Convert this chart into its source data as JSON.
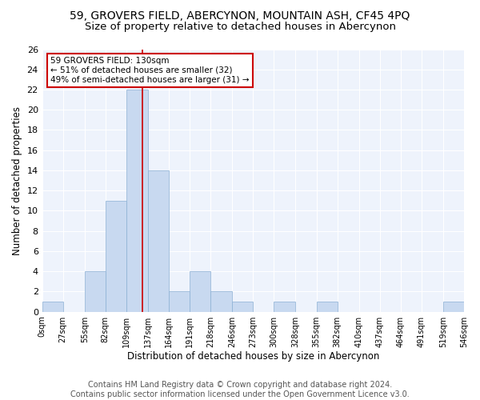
{
  "title": "59, GROVERS FIELD, ABERCYNON, MOUNTAIN ASH, CF45 4PQ",
  "subtitle": "Size of property relative to detached houses in Abercynon",
  "xlabel": "Distribution of detached houses by size in Abercynon",
  "ylabel": "Number of detached properties",
  "bar_color": "#c8d9f0",
  "bar_edge_color": "#8aafd4",
  "marker_line_color": "#cc0000",
  "marker_value": 130,
  "annotation_line1": "59 GROVERS FIELD: 130sqm",
  "annotation_line2": "← 51% of detached houses are smaller (32)",
  "annotation_line3": "49% of semi-detached houses are larger (31) →",
  "annotation_box_color": "#ffffff",
  "annotation_box_edge": "#cc0000",
  "bins": [
    0,
    27,
    55,
    82,
    109,
    137,
    164,
    191,
    218,
    246,
    273,
    300,
    328,
    355,
    382,
    410,
    437,
    464,
    491,
    519,
    546
  ],
  "bin_labels": [
    "0sqm",
    "27sqm",
    "55sqm",
    "82sqm",
    "109sqm",
    "137sqm",
    "164sqm",
    "191sqm",
    "218sqm",
    "246sqm",
    "273sqm",
    "300sqm",
    "328sqm",
    "355sqm",
    "382sqm",
    "410sqm",
    "437sqm",
    "464sqm",
    "491sqm",
    "519sqm",
    "546sqm"
  ],
  "counts": [
    1,
    0,
    4,
    11,
    22,
    14,
    2,
    4,
    2,
    1,
    0,
    1,
    0,
    1,
    0,
    0,
    0,
    0,
    0,
    1
  ],
  "ylim": [
    0,
    26
  ],
  "yticks": [
    0,
    2,
    4,
    6,
    8,
    10,
    12,
    14,
    16,
    18,
    20,
    22,
    24,
    26
  ],
  "background_color": "#eef3fc",
  "grid_color": "#ffffff",
  "footer_line1": "Contains HM Land Registry data © Crown copyright and database right 2024.",
  "footer_line2": "Contains public sector information licensed under the Open Government Licence v3.0.",
  "title_fontsize": 10,
  "subtitle_fontsize": 9.5,
  "xlabel_fontsize": 8.5,
  "ylabel_fontsize": 8.5,
  "footer_fontsize": 7
}
